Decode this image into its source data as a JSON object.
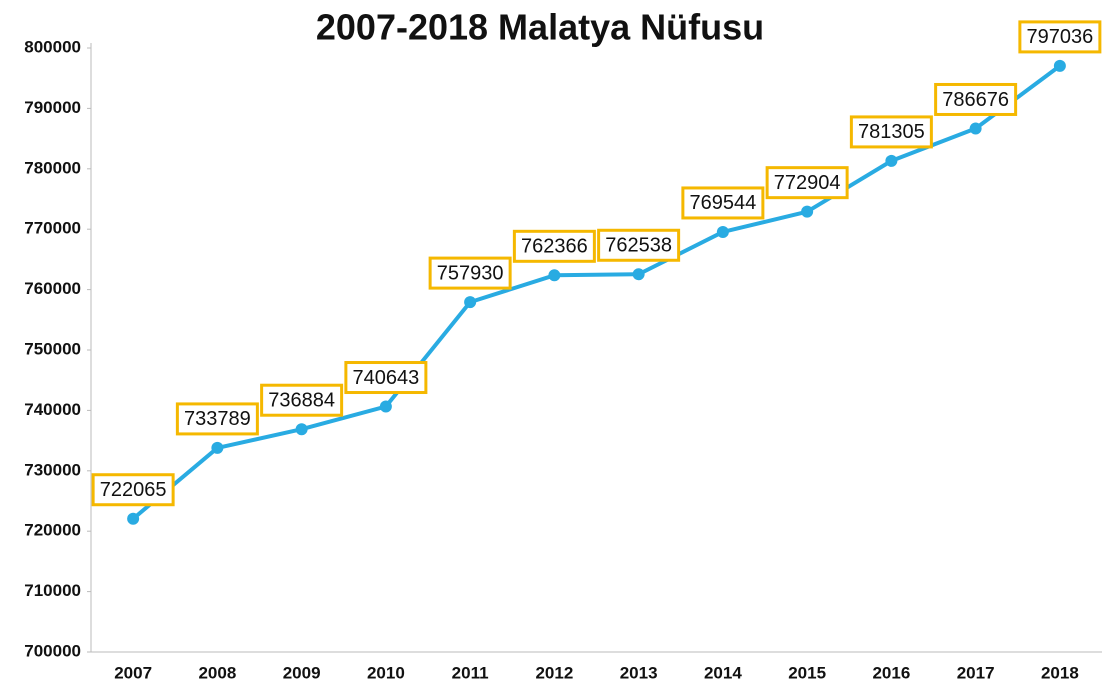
{
  "chart_data": {
    "type": "line",
    "title": "2007-2018 Malatya Nüfusu",
    "categories": [
      "2007",
      "2008",
      "2009",
      "2010",
      "2011",
      "2012",
      "2013",
      "2014",
      "2015",
      "2016",
      "2017",
      "2018"
    ],
    "values": [
      722065,
      733789,
      736884,
      740643,
      757930,
      762366,
      762538,
      769544,
      772904,
      781305,
      786676,
      797036
    ],
    "color": "#29abe2",
    "label_border_color": "#f5b800",
    "ylim": [
      700000,
      800000
    ],
    "yticks": [
      700000,
      710000,
      720000,
      730000,
      740000,
      750000,
      760000,
      770000,
      780000,
      790000,
      800000
    ],
    "grid": false
  }
}
